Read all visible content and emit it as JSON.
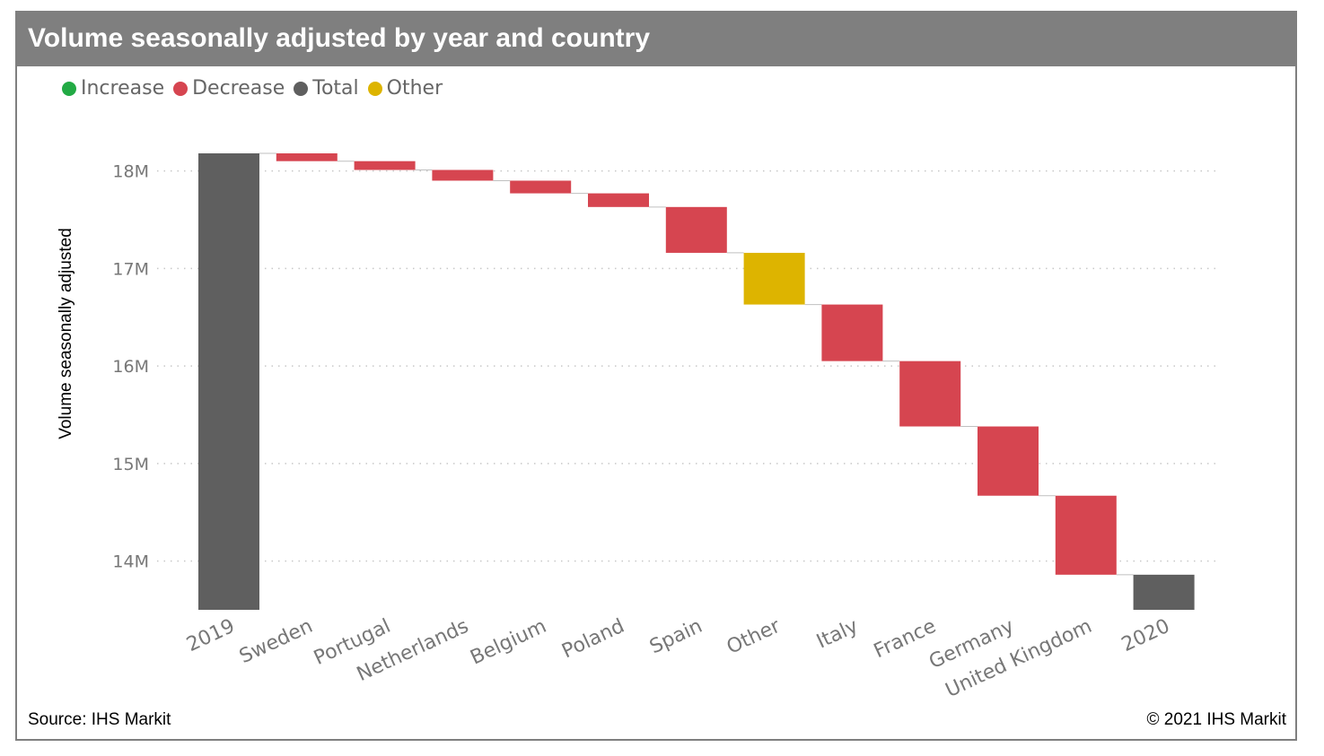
{
  "title": "Volume seasonally adjusted by year and country",
  "legend": [
    {
      "label": "Increase",
      "color": "#22aa44"
    },
    {
      "label": "Decrease",
      "color": "#d64550"
    },
    {
      "label": "Total",
      "color": "#5f5f5f"
    },
    {
      "label": "Other",
      "color": "#ddb400"
    }
  ],
  "source": "Source: IHS Markit",
  "copyright": "© 2021 IHS Markit",
  "chart_data": {
    "type": "waterfall",
    "ylabel": "Volume seasonally adjusted",
    "ylim": [
      13.5,
      18.3
    ],
    "yticks": [
      14,
      15,
      16,
      17,
      18
    ],
    "ytick_labels": [
      "14M",
      "15M",
      "16M",
      "17M",
      "18M"
    ],
    "grid": true,
    "categories": [
      "2019",
      "Sweden",
      "Portugal",
      "Netherlands",
      "Belgium",
      "Poland",
      "Spain",
      "Other",
      "Italy",
      "France",
      "Germany",
      "United Kingdom",
      "2020"
    ],
    "bars": [
      {
        "category": "2019",
        "kind": "Total",
        "start": 13.5,
        "end": 18.18
      },
      {
        "category": "Sweden",
        "kind": "Decrease",
        "start": 18.18,
        "end": 18.1
      },
      {
        "category": "Portugal",
        "kind": "Decrease",
        "start": 18.1,
        "end": 18.01
      },
      {
        "category": "Netherlands",
        "kind": "Decrease",
        "start": 18.01,
        "end": 17.9
      },
      {
        "category": "Belgium",
        "kind": "Decrease",
        "start": 17.9,
        "end": 17.77
      },
      {
        "category": "Poland",
        "kind": "Decrease",
        "start": 17.77,
        "end": 17.63
      },
      {
        "category": "Spain",
        "kind": "Decrease",
        "start": 17.63,
        "end": 17.16
      },
      {
        "category": "Other",
        "kind": "Other",
        "start": 17.16,
        "end": 16.63
      },
      {
        "category": "Italy",
        "kind": "Decrease",
        "start": 16.63,
        "end": 16.05
      },
      {
        "category": "France",
        "kind": "Decrease",
        "start": 16.05,
        "end": 15.38
      },
      {
        "category": "Germany",
        "kind": "Decrease",
        "start": 15.38,
        "end": 14.67
      },
      {
        "category": "United Kingdom",
        "kind": "Decrease",
        "start": 14.67,
        "end": 13.86
      },
      {
        "category": "2020",
        "kind": "Total",
        "start": 13.5,
        "end": 13.86
      }
    ],
    "colors": {
      "Increase": "#22aa44",
      "Decrease": "#d64550",
      "Total": "#5f5f5f",
      "Other": "#ddb400"
    }
  }
}
